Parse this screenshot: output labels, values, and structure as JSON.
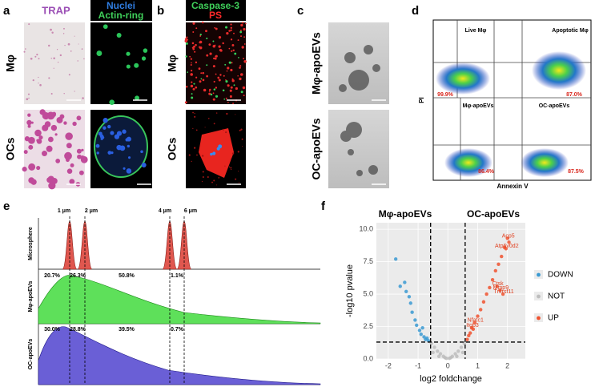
{
  "panels": {
    "a": {
      "letter": "a",
      "stain": "TRAP",
      "fluor_1": "Nuclei",
      "fluor_2": "Actin-ring",
      "row_1": "Mφ",
      "row_2": "OCs"
    },
    "b": {
      "letter": "b",
      "fluor_1": "Caspase-3",
      "fluor_2": "PS",
      "row_1": "Mφ",
      "row_2": "OCs"
    },
    "c": {
      "letter": "c",
      "row_1": "Mφ-apoEVs",
      "row_2": "OC-apoEVs"
    },
    "d": {
      "letter": "d",
      "y_label": "PI",
      "x_label": "Annexin V",
      "quadrants": [
        "Live Mφ",
        "Apoptotic Mφ",
        "Mφ-apoEVs",
        "OC-apoEVs"
      ],
      "percents": [
        "99.9%",
        "87.0%",
        "86.4%",
        "87.5%"
      ]
    },
    "e": {
      "letter": "e",
      "sizes": [
        "1 μm",
        "2 μm",
        "4 μm",
        "6 μm"
      ],
      "tracks": [
        "Microsphere",
        "Mφ-apoEVs",
        "OC-apoEVs"
      ],
      "mphi_percents": [
        "20.7%",
        "26.3%",
        "50.8%",
        "1.1%"
      ],
      "oc_percents": [
        "30.0%",
        "28.8%",
        "39.5%",
        "0.7%"
      ]
    },
    "f": {
      "letter": "f"
    }
  },
  "chart_data": {
    "type": "scatter",
    "group_labels": [
      "Mφ-apoEVs",
      "OC-apoEVs"
    ],
    "x_label": "log2 foldchange",
    "y_label": "-log10 pvalue",
    "xlim": [
      -2.4,
      2.6
    ],
    "ylim": [
      0,
      10.5
    ],
    "xticks": [
      -2,
      -1,
      0,
      1,
      2
    ],
    "yticks": [
      {
        "value": 0,
        "label": "0.0"
      },
      {
        "value": 2.5,
        "label": "2.5"
      },
      {
        "value": 5,
        "label": "5.0"
      },
      {
        "value": 7.5,
        "label": "7.5"
      },
      {
        "value": 10,
        "label": "10.0"
      }
    ],
    "fc_cutoff": [
      -0.58,
      0.58
    ],
    "p_cutoff": 1.3,
    "series": [
      {
        "name": "DOWN",
        "color": "#3b9ad2",
        "x": [
          -1.75,
          -1.6,
          -1.45,
          -1.4,
          -1.3,
          -1.25,
          -1.2,
          -1.1,
          -1.05,
          -0.95,
          -0.9,
          -0.85,
          -0.8,
          -0.75,
          -0.7,
          -0.65
        ],
        "values": [
          7.7,
          5.6,
          5.9,
          5.2,
          4.8,
          4.3,
          3.6,
          3.0,
          2.6,
          2.2,
          1.9,
          2.4,
          1.7,
          1.5,
          1.6,
          1.4
        ]
      },
      {
        "name": "NOT",
        "color": "#bdbdbd",
        "x": [
          -0.55,
          -0.45,
          -0.35,
          -0.25,
          -0.15,
          -0.05,
          0.05,
          0.15,
          0.25,
          0.35,
          0.45,
          0.55,
          -0.5,
          0.5,
          -0.3,
          0.3,
          -0.1,
          0.1
        ],
        "values": [
          1.2,
          0.9,
          0.6,
          0.4,
          0.2,
          0.05,
          0.05,
          0.2,
          0.4,
          0.6,
          0.9,
          1.2,
          0.5,
          0.5,
          0.2,
          0.2,
          0.1,
          0.1
        ]
      },
      {
        "name": "UP",
        "color": "#f0522f",
        "x": [
          0.65,
          0.7,
          0.75,
          0.8,
          0.9,
          1.0,
          1.1,
          1.2,
          1.3,
          1.4,
          1.5,
          1.6,
          1.7,
          1.8,
          1.9,
          2.0,
          2.05,
          1.95,
          1.65,
          1.75,
          1.85,
          0.85
        ],
        "values": [
          1.5,
          1.8,
          2.0,
          2.4,
          2.8,
          3.3,
          3.8,
          4.4,
          5.0,
          5.5,
          6.1,
          6.8,
          7.3,
          7.9,
          8.6,
          9.3,
          9.0,
          8.5,
          5.6,
          5.3,
          5.0,
          2.3
        ],
        "point_labels": [
          null,
          null,
          null,
          "Itgb3",
          "Nfatc1",
          null,
          null,
          null,
          null,
          null,
          null,
          null,
          null,
          null,
          null,
          "Acp5",
          null,
          "Atp6v0d2",
          "Ctsk",
          "Mmp9",
          "Tnfrsf11",
          null
        ]
      }
    ]
  }
}
